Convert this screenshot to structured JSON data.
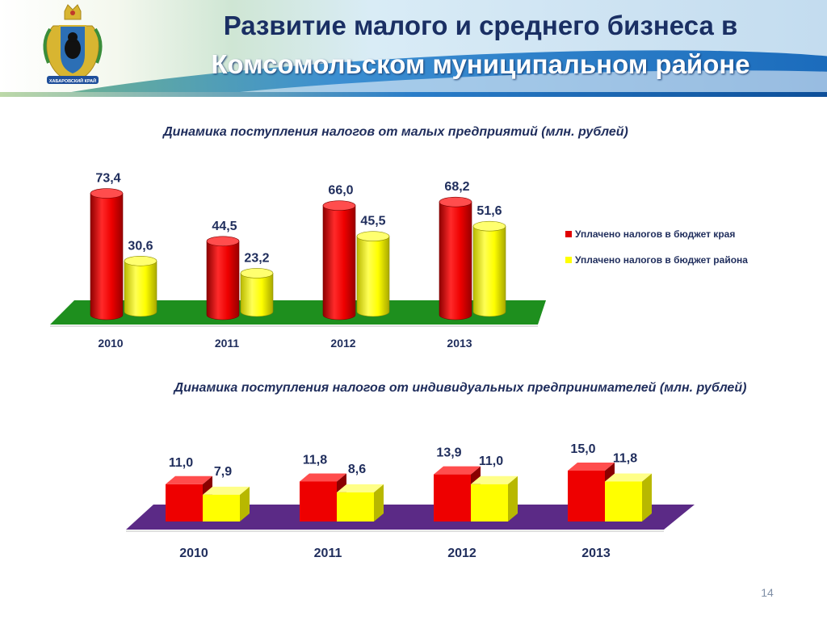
{
  "header": {
    "title_line1": "Развитие малого и среднего бизнеса в",
    "title_line2": "Комсомольском муниципальном районе",
    "emblem_text": "ХАБАРОВСКИЙ КРАЙ"
  },
  "chart_data": [
    {
      "type": "bar",
      "title": "Динамика поступления налогов от малых предприятий (млн. рублей)",
      "categories": [
        "2010",
        "2011",
        "2012",
        "2013"
      ],
      "series": [
        {
          "name": "Уплачено налогов в бюджет края",
          "color": "#e00000",
          "values": [
            73.4,
            44.5,
            66.0,
            68.2
          ],
          "labels": [
            "73,4",
            "44,5",
            "66,0",
            "68,2"
          ]
        },
        {
          "name": "Уплачено налогов в бюджет района",
          "color": "#ffff00",
          "values": [
            30.6,
            23.2,
            45.5,
            51.6
          ],
          "labels": [
            "30,6",
            "23,2",
            "45,5",
            "51,6"
          ]
        }
      ],
      "floor_color": "#1e8f1e",
      "legend": "right"
    },
    {
      "type": "bar",
      "title": "Динамика поступления налогов от индивидуальных предпринимателей (млн. рублей)",
      "categories": [
        "2010",
        "2011",
        "2012",
        "2013"
      ],
      "series": [
        {
          "color": "#e00000",
          "values": [
            11.0,
            11.8,
            13.9,
            15.0
          ],
          "labels": [
            "11,0",
            "11,8",
            "13,9",
            "15,0"
          ]
        },
        {
          "color": "#ffff00",
          "values": [
            7.9,
            8.6,
            11.0,
            11.8
          ],
          "labels": [
            "7,9",
            "8,6",
            "11,0",
            "11,8"
          ]
        }
      ],
      "floor_color": "#5b2a86"
    }
  ],
  "page_number": "14"
}
